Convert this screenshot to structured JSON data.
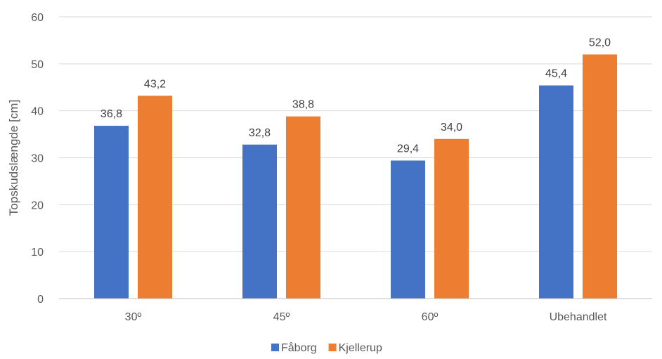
{
  "chart_data": {
    "type": "bar",
    "categories": [
      "30º",
      "45º",
      "60º",
      "Ubehandlet"
    ],
    "series": [
      {
        "name": "Fåborg",
        "values": [
          36.8,
          32.8,
          29.4,
          45.4
        ],
        "labels": [
          "36,8",
          "32,8",
          "29,4",
          "45,4"
        ],
        "color": "#4472c4"
      },
      {
        "name": "Kjellerup",
        "values": [
          43.2,
          38.8,
          34.0,
          52.0
        ],
        "labels": [
          "43,2",
          "38,8",
          "34,0",
          "52,0"
        ],
        "color": "#ed7d31"
      }
    ],
    "ylabel": "Topskudslængde [cm]",
    "xlabel": "",
    "ylim": [
      0,
      60
    ],
    "yticks": [
      0,
      10,
      20,
      30,
      40,
      50,
      60
    ],
    "grid": true,
    "legend_position": "bottom"
  }
}
